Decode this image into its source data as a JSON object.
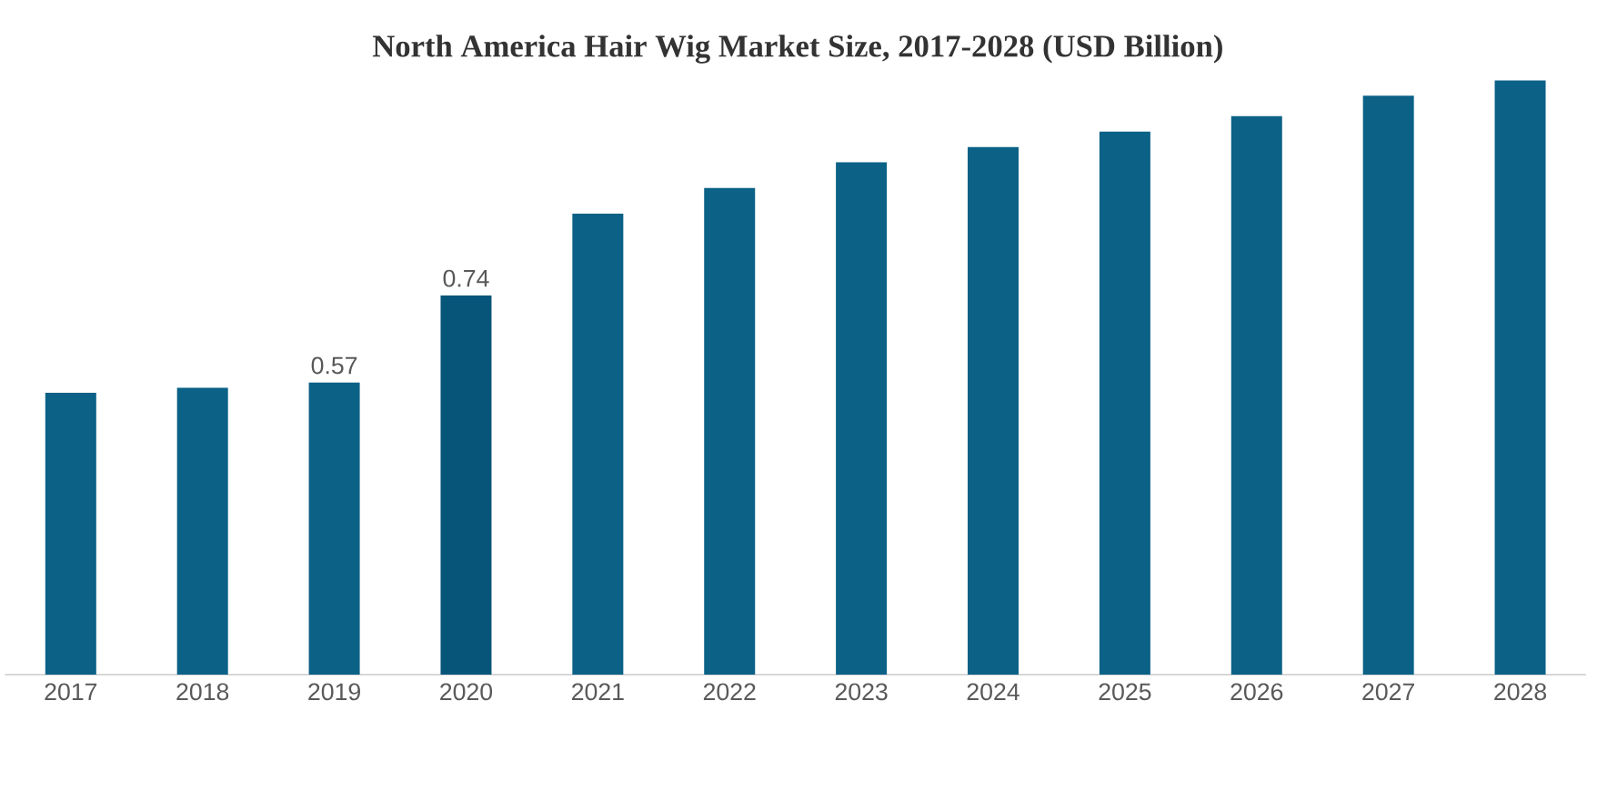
{
  "chart_data": {
    "type": "bar",
    "title": "North America Hair Wig Market Size, 2017-2028 (USD Billion)",
    "categories": [
      "2017",
      "2018",
      "2019",
      "2020",
      "2021",
      "2022",
      "2023",
      "2024",
      "2025",
      "2026",
      "2027",
      "2028"
    ],
    "values": [
      0.55,
      0.56,
      0.57,
      0.74,
      0.9,
      0.95,
      1.0,
      1.03,
      1.06,
      1.09,
      1.13,
      1.16
    ],
    "value_labels": [
      null,
      null,
      "0.57",
      "0.74",
      null,
      null,
      null,
      null,
      null,
      null,
      null,
      null
    ],
    "colors": [
      "#0b6186",
      "#0b6186",
      "#0b6186",
      "#08557a",
      "#0b6186",
      "#0b6186",
      "#0b6186",
      "#0b6186",
      "#0b6186",
      "#0b6186",
      "#0b6186",
      "#0b6186"
    ]
  }
}
